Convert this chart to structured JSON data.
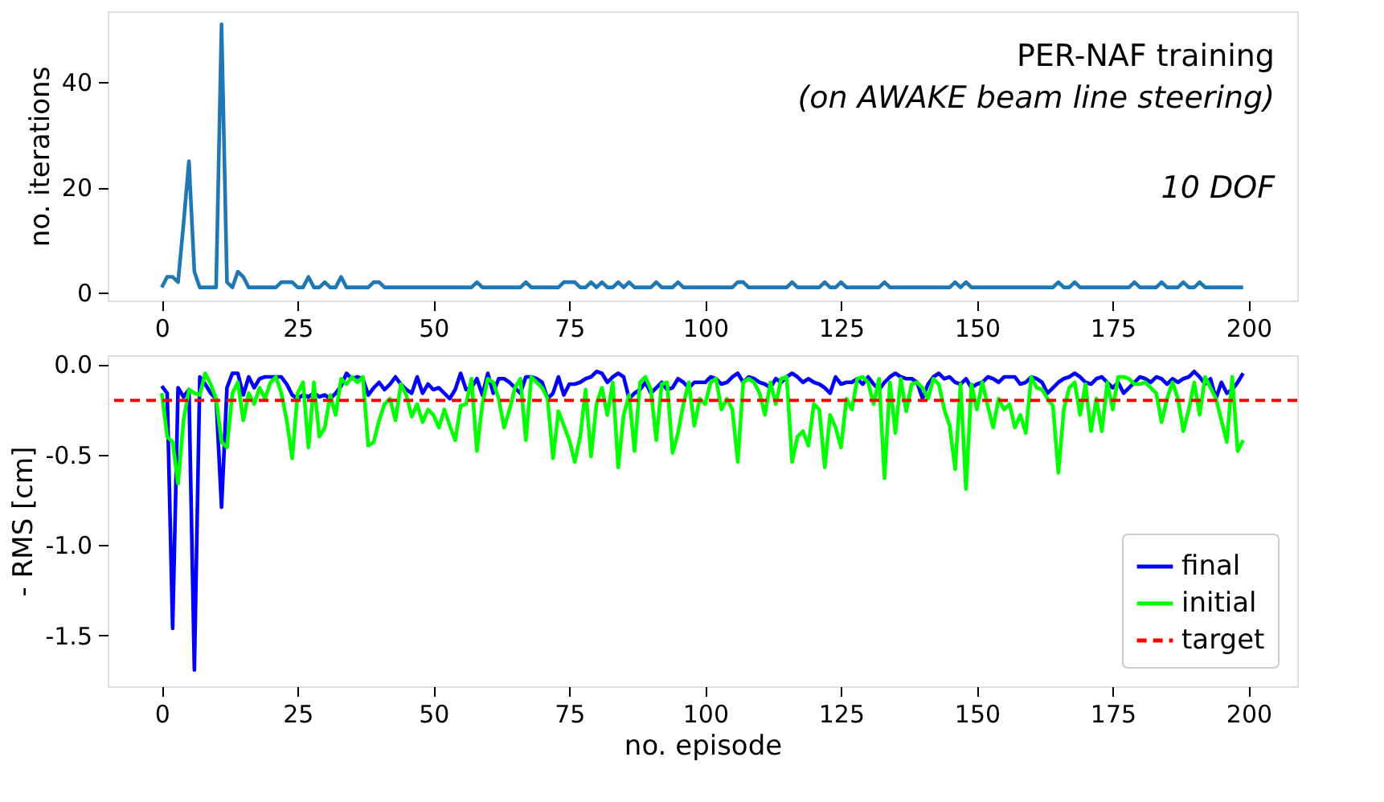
{
  "chart_data": [
    {
      "type": "line",
      "ylabel": "no. iterations",
      "color": "#1f77b4",
      "annotations": [
        "PER-NAF training",
        "(on AWAKE beam line steering)",
        "10  DOF"
      ],
      "x": [
        0,
        1,
        2,
        3,
        4,
        5,
        6,
        7,
        8,
        9,
        10,
        11,
        12,
        13,
        14,
        15,
        16,
        17,
        18,
        19,
        20,
        21,
        22,
        23,
        24,
        25,
        26,
        27,
        28,
        29,
        30,
        31,
        32,
        33,
        34,
        35,
        36,
        37,
        38,
        39,
        40,
        41,
        42,
        43,
        44,
        45,
        46,
        47,
        48,
        49,
        50,
        51,
        52,
        53,
        54,
        55,
        56,
        57,
        58,
        59,
        60,
        61,
        62,
        63,
        64,
        65,
        66,
        67,
        68,
        69,
        70,
        71,
        72,
        73,
        74,
        75,
        76,
        77,
        78,
        79,
        80,
        81,
        82,
        83,
        84,
        85,
        86,
        87,
        88,
        89,
        90,
        91,
        92,
        93,
        94,
        95,
        96,
        97,
        98,
        99,
        100,
        101,
        102,
        103,
        104,
        105,
        106,
        107,
        108,
        109,
        110,
        111,
        112,
        113,
        114,
        115,
        116,
        117,
        118,
        119,
        120,
        121,
        122,
        123,
        124,
        125,
        126,
        127,
        128,
        129,
        130,
        131,
        132,
        133,
        134,
        135,
        136,
        137,
        138,
        139,
        140,
        141,
        142,
        143,
        144,
        145,
        146,
        147,
        148,
        149,
        150,
        151,
        152,
        153,
        154,
        155,
        156,
        157,
        158,
        159,
        160,
        161,
        162,
        163,
        164,
        165,
        166,
        167,
        168,
        169,
        170,
        171,
        172,
        173,
        174,
        175,
        176,
        177,
        178,
        179,
        180,
        181,
        182,
        183,
        184,
        185,
        186,
        187,
        188,
        189,
        190,
        191,
        192,
        193,
        194,
        195,
        196,
        197,
        198,
        199
      ],
      "values": [
        1,
        3,
        3,
        2,
        13,
        25,
        4,
        1,
        1,
        1,
        1,
        51,
        2,
        1,
        4,
        3,
        1,
        1,
        1,
        1,
        1,
        1,
        2,
        2,
        2,
        1,
        1,
        3,
        1,
        1,
        2,
        1,
        1,
        3,
        1,
        1,
        1,
        1,
        1,
        2,
        2,
        1,
        1,
        1,
        1,
        1,
        1,
        1,
        1,
        1,
        1,
        1,
        1,
        1,
        1,
        1,
        1,
        1,
        2,
        1,
        1,
        1,
        1,
        1,
        1,
        1,
        1,
        2,
        1,
        1,
        1,
        1,
        1,
        1,
        2,
        2,
        2,
        1,
        1,
        2,
        1,
        2,
        1,
        1,
        2,
        1,
        2,
        1,
        1,
        1,
        1,
        2,
        1,
        1,
        1,
        2,
        1,
        1,
        1,
        1,
        1,
        1,
        1,
        1,
        1,
        1,
        2,
        2,
        1,
        1,
        1,
        1,
        1,
        1,
        1,
        1,
        2,
        1,
        1,
        1,
        1,
        1,
        2,
        1,
        1,
        2,
        1,
        1,
        1,
        1,
        1,
        1,
        1,
        2,
        1,
        1,
        1,
        1,
        1,
        1,
        1,
        1,
        1,
        1,
        1,
        1,
        2,
        1,
        2,
        1,
        1,
        1,
        1,
        1,
        1,
        1,
        1,
        1,
        1,
        1,
        1,
        1,
        1,
        1,
        1,
        2,
        1,
        1,
        2,
        1,
        1,
        1,
        1,
        1,
        1,
        1,
        1,
        1,
        1,
        2,
        1,
        1,
        1,
        1,
        2,
        1,
        1,
        1,
        2,
        1,
        1,
        2,
        1,
        1,
        1,
        1,
        1,
        1,
        1,
        1
      ],
      "xlim": [
        -9.95,
        208.95
      ],
      "ylim": [
        -1.5,
        53.5
      ],
      "xticks": [
        0,
        25,
        50,
        75,
        100,
        125,
        150,
        175,
        200
      ],
      "yticks": [
        0,
        20,
        40
      ]
    },
    {
      "type": "line",
      "xlabel": "no. episode",
      "ylabel": "- RMS [cm]",
      "legend": "bottom right",
      "x": [
        0,
        1,
        2,
        3,
        4,
        5,
        6,
        7,
        8,
        9,
        10,
        11,
        12,
        13,
        14,
        15,
        16,
        17,
        18,
        19,
        20,
        21,
        22,
        23,
        24,
        25,
        26,
        27,
        28,
        29,
        30,
        31,
        32,
        33,
        34,
        35,
        36,
        37,
        38,
        39,
        40,
        41,
        42,
        43,
        44,
        45,
        46,
        47,
        48,
        49,
        50,
        51,
        52,
        53,
        54,
        55,
        56,
        57,
        58,
        59,
        60,
        61,
        62,
        63,
        64,
        65,
        66,
        67,
        68,
        69,
        70,
        71,
        72,
        73,
        74,
        75,
        76,
        77,
        78,
        79,
        80,
        81,
        82,
        83,
        84,
        85,
        86,
        87,
        88,
        89,
        90,
        91,
        92,
        93,
        94,
        95,
        96,
        97,
        98,
        99,
        100,
        101,
        102,
        103,
        104,
        105,
        106,
        107,
        108,
        109,
        110,
        111,
        112,
        113,
        114,
        115,
        116,
        117,
        118,
        119,
        120,
        121,
        122,
        123,
        124,
        125,
        126,
        127,
        128,
        129,
        130,
        131,
        132,
        133,
        134,
        135,
        136,
        137,
        138,
        139,
        140,
        141,
        142,
        143,
        144,
        145,
        146,
        147,
        148,
        149,
        150,
        151,
        152,
        153,
        154,
        155,
        156,
        157,
        158,
        159,
        160,
        161,
        162,
        163,
        164,
        165,
        166,
        167,
        168,
        169,
        170,
        171,
        172,
        173,
        174,
        175,
        176,
        177,
        178,
        179,
        180,
        181,
        182,
        183,
        184,
        185,
        186,
        187,
        188,
        189,
        190,
        191,
        192,
        193,
        194,
        195,
        196,
        197,
        198,
        199
      ],
      "series": [
        {
          "name": "final",
          "color": "#0000ff",
          "values": [
            -0.12,
            -0.16,
            -1.46,
            -0.13,
            -0.18,
            -0.14,
            -1.69,
            -0.07,
            -0.11,
            -0.16,
            -0.19,
            -0.79,
            -0.13,
            -0.05,
            -0.05,
            -0.17,
            -0.07,
            -0.13,
            -0.08,
            -0.07,
            -0.07,
            -0.07,
            -0.07,
            -0.11,
            -0.17,
            -0.19,
            -0.17,
            -0.18,
            -0.16,
            -0.18,
            -0.17,
            -0.19,
            -0.16,
            -0.12,
            -0.05,
            -0.08,
            -0.07,
            -0.08,
            -0.17,
            -0.13,
            -0.1,
            -0.14,
            -0.11,
            -0.07,
            -0.11,
            -0.14,
            -0.16,
            -0.07,
            -0.16,
            -0.11,
            -0.14,
            -0.13,
            -0.16,
            -0.19,
            -0.14,
            -0.05,
            -0.14,
            -0.13,
            -0.08,
            -0.17,
            -0.05,
            -0.16,
            -0.08,
            -0.08,
            -0.1,
            -0.13,
            -0.16,
            -0.07,
            -0.07,
            -0.08,
            -0.1,
            -0.19,
            -0.16,
            -0.07,
            -0.17,
            -0.11,
            -0.11,
            -0.1,
            -0.08,
            -0.07,
            -0.04,
            -0.05,
            -0.1,
            -0.07,
            -0.05,
            -0.07,
            -0.19,
            -0.16,
            -0.14,
            -0.1,
            -0.16,
            -0.13,
            -0.1,
            -0.14,
            -0.13,
            -0.08,
            -0.1,
            -0.13,
            -0.1,
            -0.1,
            -0.1,
            -0.07,
            -0.08,
            -0.11,
            -0.1,
            -0.07,
            -0.05,
            -0.1,
            -0.07,
            -0.08,
            -0.1,
            -0.11,
            -0.13,
            -0.08,
            -0.1,
            -0.07,
            -0.05,
            -0.07,
            -0.1,
            -0.08,
            -0.1,
            -0.11,
            -0.13,
            -0.16,
            -0.07,
            -0.11,
            -0.1,
            -0.1,
            -0.08,
            -0.11,
            -0.07,
            -0.11,
            -0.14,
            -0.1,
            -0.07,
            -0.05,
            -0.07,
            -0.08,
            -0.08,
            -0.1,
            -0.19,
            -0.11,
            -0.07,
            -0.05,
            -0.08,
            -0.07,
            -0.1,
            -0.11,
            -0.08,
            -0.13,
            -0.11,
            -0.1,
            -0.07,
            -0.08,
            -0.1,
            -0.07,
            -0.07,
            -0.07,
            -0.11,
            -0.1,
            -0.07,
            -0.08,
            -0.1,
            -0.16,
            -0.13,
            -0.1,
            -0.08,
            -0.07,
            -0.05,
            -0.07,
            -0.1,
            -0.11,
            -0.08,
            -0.07,
            -0.1,
            -0.13,
            -0.1,
            -0.16,
            -0.13,
            -0.1,
            -0.07,
            -0.08,
            -0.1,
            -0.07,
            -0.08,
            -0.11,
            -0.08,
            -0.1,
            -0.08,
            -0.07,
            -0.04,
            -0.07,
            -0.11,
            -0.08,
            -0.19,
            -0.1,
            -0.16,
            -0.14,
            -0.1,
            -0.05
          ]
        },
        {
          "name": "initial",
          "color": "#00ff00",
          "values": [
            -0.16,
            -0.4,
            -0.43,
            -0.66,
            -0.31,
            -0.14,
            -0.16,
            -0.17,
            -0.05,
            -0.11,
            -0.19,
            -0.43,
            -0.46,
            -0.16,
            -0.1,
            -0.31,
            -0.16,
            -0.22,
            -0.13,
            -0.19,
            -0.1,
            -0.07,
            -0.16,
            -0.31,
            -0.52,
            -0.16,
            -0.1,
            -0.46,
            -0.1,
            -0.4,
            -0.35,
            -0.17,
            -0.28,
            -0.08,
            -0.11,
            -0.07,
            -0.1,
            -0.07,
            -0.45,
            -0.43,
            -0.31,
            -0.22,
            -0.19,
            -0.31,
            -0.11,
            -0.17,
            -0.29,
            -0.22,
            -0.32,
            -0.25,
            -0.28,
            -0.35,
            -0.25,
            -0.34,
            -0.42,
            -0.23,
            -0.22,
            -0.08,
            -0.48,
            -0.22,
            -0.08,
            -0.1,
            -0.19,
            -0.35,
            -0.25,
            -0.13,
            -0.08,
            -0.42,
            -0.07,
            -0.1,
            -0.13,
            -0.19,
            -0.52,
            -0.26,
            -0.34,
            -0.42,
            -0.54,
            -0.4,
            -0.14,
            -0.51,
            -0.22,
            -0.13,
            -0.28,
            -0.1,
            -0.57,
            -0.28,
            -0.17,
            -0.48,
            -0.1,
            -0.07,
            -0.14,
            -0.42,
            -0.11,
            -0.1,
            -0.49,
            -0.38,
            -0.22,
            -0.1,
            -0.34,
            -0.19,
            -0.22,
            -0.1,
            -0.08,
            -0.25,
            -0.19,
            -0.25,
            -0.54,
            -0.1,
            -0.08,
            -0.1,
            -0.16,
            -0.28,
            -0.1,
            -0.22,
            -0.08,
            -0.07,
            -0.54,
            -0.4,
            -0.37,
            -0.45,
            -0.22,
            -0.25,
            -0.57,
            -0.28,
            -0.35,
            -0.46,
            -0.19,
            -0.25,
            -0.08,
            -0.07,
            -0.1,
            -0.22,
            -0.08,
            -0.63,
            -0.1,
            -0.38,
            -0.08,
            -0.26,
            -0.11,
            -0.1,
            -0.13,
            -0.19,
            -0.08,
            -0.11,
            -0.25,
            -0.34,
            -0.58,
            -0.11,
            -0.69,
            -0.11,
            -0.25,
            -0.1,
            -0.23,
            -0.35,
            -0.19,
            -0.25,
            -0.22,
            -0.35,
            -0.28,
            -0.38,
            -0.07,
            -0.13,
            -0.14,
            -0.19,
            -0.23,
            -0.6,
            -0.25,
            -0.13,
            -0.1,
            -0.28,
            -0.11,
            -0.37,
            -0.19,
            -0.37,
            -0.1,
            -0.25,
            -0.07,
            -0.07,
            -0.08,
            -0.11,
            -0.11,
            -0.1,
            -0.13,
            -0.16,
            -0.32,
            -0.19,
            -0.1,
            -0.19,
            -0.37,
            -0.25,
            -0.1,
            -0.28,
            -0.07,
            -0.13,
            -0.19,
            -0.31,
            -0.43,
            -0.07,
            -0.48,
            -0.42
          ]
        }
      ],
      "ref_lines": [
        {
          "axis": "y",
          "value": -0.2,
          "label": "target",
          "color": "#ff0000",
          "line_style": "dashed"
        }
      ],
      "xlim": [
        -9.95,
        208.95
      ],
      "ylim": [
        -1.78,
        0.05
      ],
      "xticks": [
        0,
        25,
        50,
        75,
        100,
        125,
        150,
        175,
        200
      ],
      "yticks": [
        {
          "value": 0,
          "label": "0.0"
        },
        {
          "value": -0.5,
          "label": "-0.5"
        },
        {
          "value": -1,
          "label": "-1.0"
        },
        {
          "value": -1.5,
          "label": "-1.5"
        }
      ]
    }
  ]
}
